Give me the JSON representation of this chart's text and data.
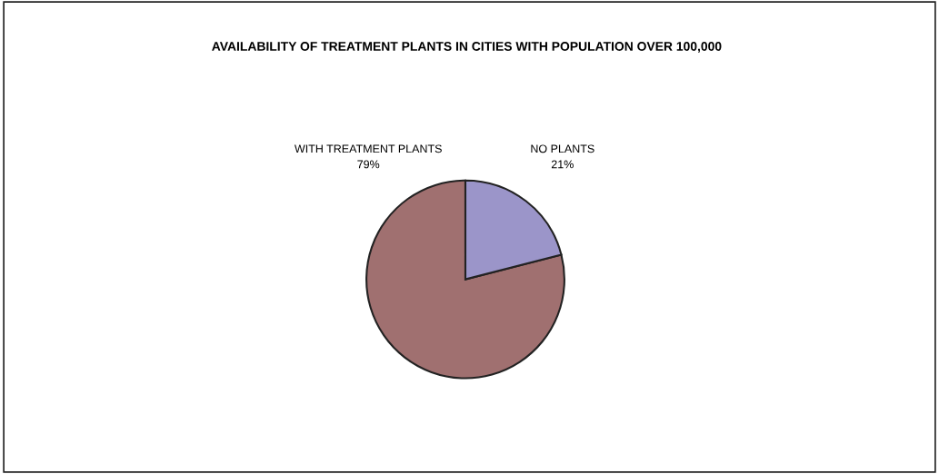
{
  "chart_data": {
    "type": "pie",
    "title": "AVAILABILITY OF TREATMENT PLANTS IN CITIES WITH POPULATION OVER 100,000",
    "categories": [
      "WITH TREATMENT PLANTS",
      "NO PLANTS"
    ],
    "values": [
      79,
      21
    ],
    "colors": [
      "#a07070",
      "#9b95c9"
    ],
    "value_labels": [
      "79%",
      "21%"
    ],
    "legend": false
  }
}
